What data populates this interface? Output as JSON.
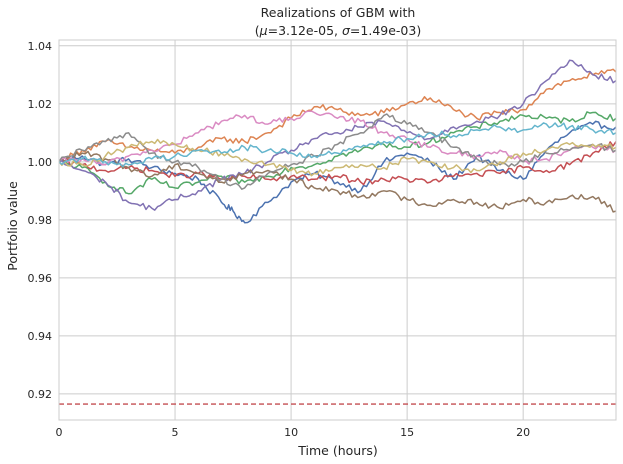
{
  "chart_data": {
    "type": "line",
    "title_line1": "Realizations of GBM with",
    "title_line2_prefix": "(",
    "mu_symbol": "μ",
    "mu_value": "=3.12e-05, ",
    "sigma_symbol": "σ",
    "sigma_value": "=1.49e-03)",
    "xlabel": "Time (hours)",
    "ylabel": "Portfolio value",
    "xlim": [
      0,
      24
    ],
    "ylim": [
      0.911,
      1.042
    ],
    "xticks": [
      0,
      5,
      10,
      15,
      20
    ],
    "yticks": [
      0.92,
      0.94,
      0.96,
      0.98,
      1.0,
      1.02,
      1.04
    ],
    "ytick_labels": [
      "0.92",
      "0.94",
      "0.96",
      "0.98",
      "1.00",
      "1.02",
      "1.04"
    ],
    "grid": true,
    "threshold": {
      "y": 0.9165,
      "color": "#c44e52",
      "style": "dashed"
    },
    "series": [
      {
        "color": "#4c72b0",
        "points": [
          [
            0,
            1.0
          ],
          [
            1,
            1.002
          ],
          [
            2,
            0.999
          ],
          [
            3,
            1.001
          ],
          [
            4,
            0.998
          ],
          [
            5,
            0.996
          ],
          [
            6,
            0.994
          ],
          [
            7,
            0.986
          ],
          [
            7.5,
            0.983
          ],
          [
            8,
            0.979
          ],
          [
            9,
            0.986
          ],
          [
            10,
            0.993
          ],
          [
            11,
            0.996
          ],
          [
            12,
            0.993
          ],
          [
            13,
            0.99
          ],
          [
            14,
            1.0
          ],
          [
            15,
            1.003
          ],
          [
            16,
            1.0
          ],
          [
            17,
            0.994
          ],
          [
            18,
            1.002
          ],
          [
            19,
            0.997
          ],
          [
            20,
            0.994
          ],
          [
            21,
            1.004
          ],
          [
            22,
            1.01
          ],
          [
            23,
            1.013
          ],
          [
            24,
            1.012
          ]
        ]
      },
      {
        "color": "#dd8452",
        "points": [
          [
            0,
            1.0
          ],
          [
            1,
            1.004
          ],
          [
            2,
            1.007
          ],
          [
            3,
            1.005
          ],
          [
            4,
            1.004
          ],
          [
            5,
            1.003
          ],
          [
            6,
            1.005
          ],
          [
            7,
            1.008
          ],
          [
            8,
            1.007
          ],
          [
            9,
            1.01
          ],
          [
            10,
            1.015
          ],
          [
            11,
            1.019
          ],
          [
            12,
            1.018
          ],
          [
            13,
            1.016
          ],
          [
            14,
            1.017
          ],
          [
            15,
            1.02
          ],
          [
            16,
            1.022
          ],
          [
            17,
            1.018
          ],
          [
            18,
            1.015
          ],
          [
            19,
            1.017
          ],
          [
            20,
            1.018
          ],
          [
            21,
            1.025
          ],
          [
            22,
            1.028
          ],
          [
            23,
            1.03
          ],
          [
            24,
            1.031
          ]
        ]
      },
      {
        "color": "#55a868",
        "points": [
          [
            0,
            1.0
          ],
          [
            1,
            0.998
          ],
          [
            2,
            0.993
          ],
          [
            3,
            0.989
          ],
          [
            4,
            0.994
          ],
          [
            5,
            0.991
          ],
          [
            6,
            0.993
          ],
          [
            7,
            0.995
          ],
          [
            8,
            0.993
          ],
          [
            9,
            0.995
          ],
          [
            10,
            0.998
          ],
          [
            11,
            0.999
          ],
          [
            12,
            1.002
          ],
          [
            13,
            1.004
          ],
          [
            14,
            1.006
          ],
          [
            15,
            1.005
          ],
          [
            16,
            1.007
          ],
          [
            17,
            1.01
          ],
          [
            18,
            1.012
          ],
          [
            19,
            1.014
          ],
          [
            20,
            1.016
          ],
          [
            21,
            1.015
          ],
          [
            22,
            1.014
          ],
          [
            23,
            1.017
          ],
          [
            24,
            1.015
          ]
        ]
      },
      {
        "color": "#c44e52",
        "points": [
          [
            0,
            1.0
          ],
          [
            1,
            0.999
          ],
          [
            2,
            0.997
          ],
          [
            3,
            0.998
          ],
          [
            4,
            0.997
          ],
          [
            5,
            0.995
          ],
          [
            6,
            0.996
          ],
          [
            7,
            0.994
          ],
          [
            8,
            0.995
          ],
          [
            9,
            0.994
          ],
          [
            10,
            0.995
          ],
          [
            11,
            0.994
          ],
          [
            12,
            0.995
          ],
          [
            13,
            0.993
          ],
          [
            14,
            0.994
          ],
          [
            15,
            0.994
          ],
          [
            16,
            0.993
          ],
          [
            17,
            0.995
          ],
          [
            18,
            0.996
          ],
          [
            19,
            0.996
          ],
          [
            20,
            0.998
          ],
          [
            21,
            0.997
          ],
          [
            22,
            0.999
          ],
          [
            23,
            1.003
          ],
          [
            24,
            1.007
          ]
        ]
      },
      {
        "color": "#8172b3",
        "points": [
          [
            0,
            1.0
          ],
          [
            1,
            0.997
          ],
          [
            2,
            0.993
          ],
          [
            3,
            0.986
          ],
          [
            4,
            0.984
          ],
          [
            5,
            0.987
          ],
          [
            6,
            0.99
          ],
          [
            7,
            0.994
          ],
          [
            8,
            0.996
          ],
          [
            9,
            1.0
          ],
          [
            10,
            1.004
          ],
          [
            11,
            1.008
          ],
          [
            12,
            1.01
          ],
          [
            13,
            1.012
          ],
          [
            14,
            1.014
          ],
          [
            15,
            1.01
          ],
          [
            16,
            1.008
          ],
          [
            17,
            1.012
          ],
          [
            18,
            1.014
          ],
          [
            19,
            1.016
          ],
          [
            20,
            1.02
          ],
          [
            21,
            1.028
          ],
          [
            22,
            1.035
          ],
          [
            23,
            1.03
          ],
          [
            24,
            1.028
          ]
        ]
      },
      {
        "color": "#937860",
        "points": [
          [
            0,
            1.0
          ],
          [
            1,
            1.003
          ],
          [
            2,
            1.001
          ],
          [
            3,
            0.998
          ],
          [
            4,
            0.995
          ],
          [
            5,
            0.999
          ],
          [
            6,
            0.996
          ],
          [
            7,
            0.993
          ],
          [
            8,
            0.996
          ],
          [
            9,
            0.997
          ],
          [
            10,
            0.994
          ],
          [
            11,
            0.991
          ],
          [
            12,
            0.99
          ],
          [
            13,
            0.988
          ],
          [
            14,
            0.99
          ],
          [
            15,
            0.987
          ],
          [
            16,
            0.985
          ],
          [
            17,
            0.987
          ],
          [
            18,
            0.986
          ],
          [
            19,
            0.984
          ],
          [
            20,
            0.987
          ],
          [
            21,
            0.986
          ],
          [
            22,
            0.988
          ],
          [
            23,
            0.988
          ],
          [
            24,
            0.983
          ]
        ]
      },
      {
        "color": "#da8bc3",
        "points": [
          [
            0,
            1.0
          ],
          [
            1,
            1.001
          ],
          [
            2,
            0.999
          ],
          [
            3,
            1.002
          ],
          [
            4,
            1.004
          ],
          [
            5,
            1.006
          ],
          [
            6,
            1.01
          ],
          [
            7,
            1.014
          ],
          [
            8,
            1.016
          ],
          [
            9,
            1.013
          ],
          [
            10,
            1.015
          ],
          [
            11,
            1.017
          ],
          [
            12,
            1.015
          ],
          [
            13,
            1.014
          ],
          [
            14,
            1.01
          ],
          [
            15,
            1.008
          ],
          [
            16,
            1.005
          ],
          [
            17,
            1.003
          ],
          [
            18,
            1.002
          ],
          [
            19,
            1.004
          ],
          [
            20,
            1.0
          ],
          [
            21,
            1.001
          ],
          [
            22,
            1.004
          ],
          [
            23,
            1.005
          ],
          [
            24,
            1.004
          ]
        ]
      },
      {
        "color": "#8c8c8c",
        "points": [
          [
            0,
            1.0
          ],
          [
            1,
            1.004
          ],
          [
            2,
            1.007
          ],
          [
            3,
            1.01
          ],
          [
            4,
            1.003
          ],
          [
            5,
            1.0
          ],
          [
            6,
            0.998
          ],
          [
            7,
            0.994
          ],
          [
            8,
            0.991
          ],
          [
            9,
            0.996
          ],
          [
            10,
            0.999
          ],
          [
            11,
            1.002
          ],
          [
            12,
            1.006
          ],
          [
            13,
            1.01
          ],
          [
            14,
            1.016
          ],
          [
            15,
            1.013
          ],
          [
            16,
            1.01
          ],
          [
            17,
            1.005
          ],
          [
            18,
            1.001
          ],
          [
            19,
            0.999
          ],
          [
            20,
            1.0
          ],
          [
            21,
            1.003
          ],
          [
            22,
            1.004
          ],
          [
            23,
            1.006
          ],
          [
            24,
            1.004
          ]
        ]
      },
      {
        "color": "#ccb974",
        "points": [
          [
            0,
            1.0
          ],
          [
            1,
            0.999
          ],
          [
            2,
            1.002
          ],
          [
            3,
            1.005
          ],
          [
            4,
            1.007
          ],
          [
            5,
            1.006
          ],
          [
            6,
            1.004
          ],
          [
            7,
            1.003
          ],
          [
            8,
            1.001
          ],
          [
            9,
            0.999
          ],
          [
            10,
            0.997
          ],
          [
            11,
            0.996
          ],
          [
            12,
            0.998
          ],
          [
            13,
            0.999
          ],
          [
            14,
            0.998
          ],
          [
            15,
            1.001
          ],
          [
            16,
            1.0
          ],
          [
            17,
            0.998
          ],
          [
            18,
            0.997
          ],
          [
            19,
            1.0
          ],
          [
            20,
            1.003
          ],
          [
            21,
            1.004
          ],
          [
            22,
            1.006
          ],
          [
            23,
            1.006
          ],
          [
            24,
            1.005
          ]
        ]
      },
      {
        "color": "#64b5cd",
        "points": [
          [
            0,
            1.0
          ],
          [
            1,
            1.001
          ],
          [
            2,
            1.0
          ],
          [
            3,
            0.999
          ],
          [
            4,
            1.001
          ],
          [
            5,
            1.002
          ],
          [
            6,
            1.004
          ],
          [
            7,
            1.003
          ],
          [
            8,
            1.005
          ],
          [
            9,
            1.004
          ],
          [
            10,
            1.003
          ],
          [
            11,
            1.002
          ],
          [
            12,
            1.003
          ],
          [
            13,
            1.005
          ],
          [
            14,
            1.007
          ],
          [
            15,
            1.008
          ],
          [
            16,
            1.01
          ],
          [
            17,
            1.009
          ],
          [
            18,
            1.011
          ],
          [
            19,
            1.012
          ],
          [
            20,
            1.011
          ],
          [
            21,
            1.013
          ],
          [
            22,
            1.012
          ],
          [
            23,
            1.011
          ],
          [
            24,
            1.01
          ]
        ]
      }
    ]
  }
}
